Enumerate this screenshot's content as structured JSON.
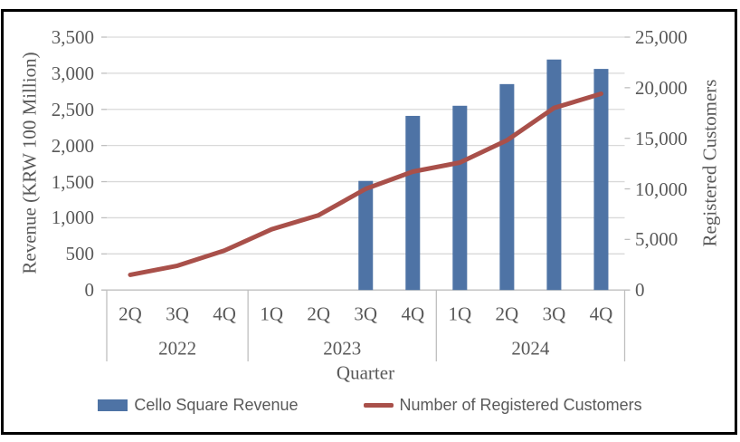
{
  "chart_data": {
    "type": "combo-bar-line",
    "categories": [
      "2Q",
      "3Q",
      "4Q",
      "1Q",
      "2Q",
      "3Q",
      "4Q",
      "1Q",
      "2Q",
      "3Q",
      "4Q"
    ],
    "year_groups": [
      {
        "year": "2022",
        "quarters": [
          "2Q",
          "3Q",
          "4Q"
        ]
      },
      {
        "year": "2023",
        "quarters": [
          "1Q",
          "2Q",
          "3Q",
          "4Q"
        ]
      },
      {
        "year": "2024",
        "quarters": [
          "1Q",
          "2Q",
          "3Q",
          "4Q"
        ]
      }
    ],
    "series": [
      {
        "name": "Cello Square Revenue",
        "type": "bar",
        "axis": "left",
        "color": "#4E73A5",
        "values": [
          null,
          null,
          null,
          null,
          null,
          1510,
          2410,
          2550,
          2850,
          3190,
          3060
        ]
      },
      {
        "name": "Number of Registered Customers",
        "type": "line",
        "axis": "right",
        "color": "#A9504A",
        "values": [
          1500,
          2400,
          3900,
          6000,
          7400,
          10000,
          11700,
          12600,
          14800,
          18000,
          19400
        ]
      }
    ],
    "left_axis": {
      "title": "Revenue (KRW 100 Million)",
      "min": 0,
      "max": 3500,
      "step": 500,
      "tick_labels": [
        "0",
        "500",
        "1,000",
        "1,500",
        "2,000",
        "2,500",
        "3,000",
        "3,500"
      ]
    },
    "right_axis": {
      "title": "Registered Customers",
      "min": 0,
      "max": 25000,
      "step": 5000,
      "tick_labels": [
        "0",
        "5,000",
        "10,000",
        "15,000",
        "20,000",
        "25,000"
      ]
    },
    "x_axis": {
      "title": "Quarter"
    },
    "grid": true,
    "legend_position": "bottom"
  },
  "colors": {
    "grid": "#D9D9D9",
    "axis_line": "#BFBFBF",
    "text": "#595959",
    "frame_border": "#000000",
    "background": "#FFFFFF"
  }
}
